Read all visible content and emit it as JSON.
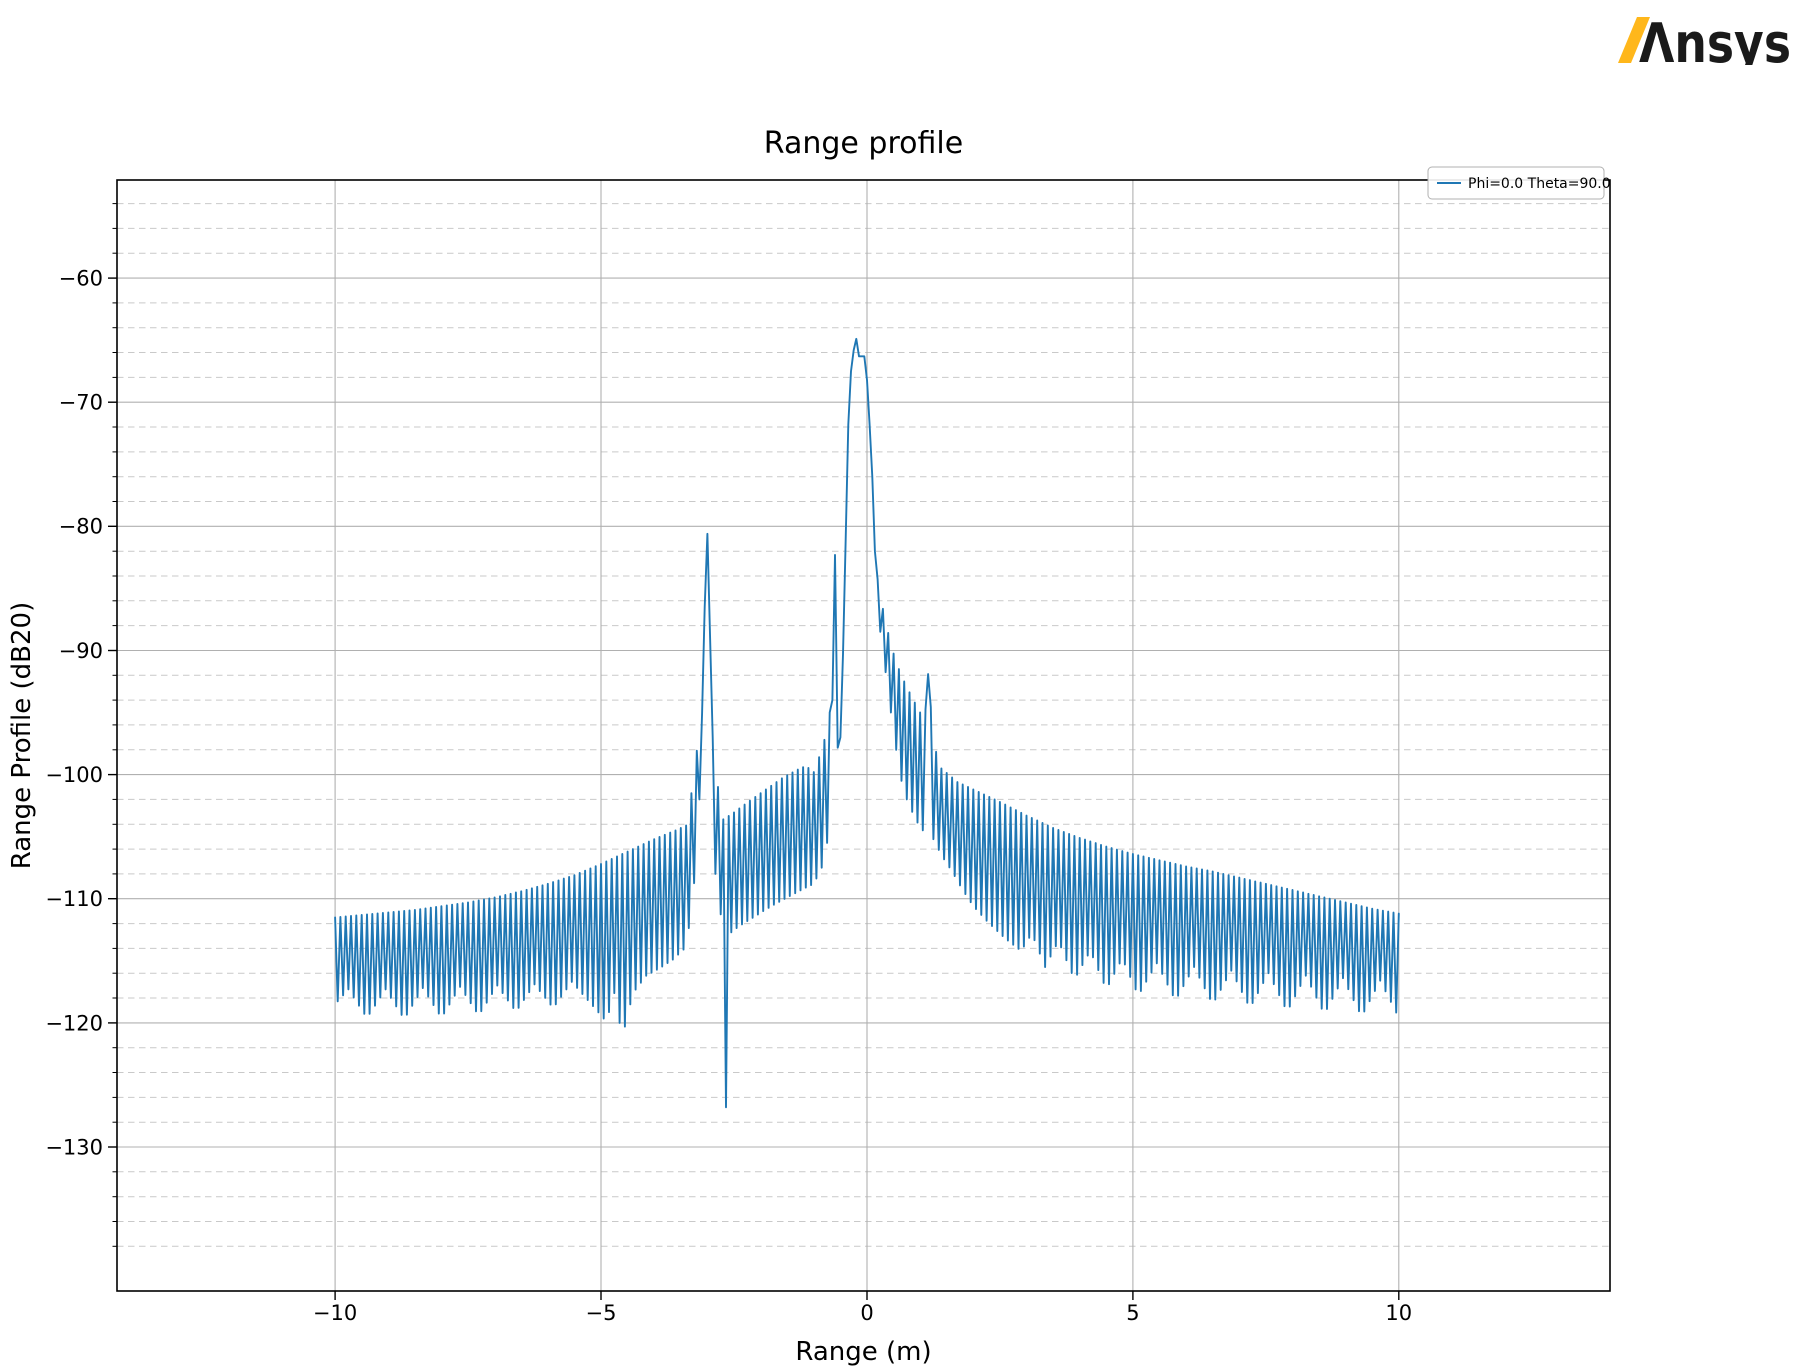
{
  "logo": {
    "alt": "Ansys",
    "mark": "Λnsys",
    "slash": "/",
    "slash_color": "#FFB71B",
    "text_color": "#1a1a1a"
  },
  "chart_data": {
    "type": "line",
    "title": "Range profile",
    "xlabel": "Range (m)",
    "ylabel": "Range Profile (dB20)",
    "xlim": [
      -14.1,
      13.97
    ],
    "ylim": [
      -141.6,
      -52.1
    ],
    "xticks": [
      {
        "v": -10,
        "label": "−10"
      },
      {
        "v": -5,
        "label": "−5"
      },
      {
        "v": 0,
        "label": "0"
      },
      {
        "v": 5,
        "label": "5"
      },
      {
        "v": 10,
        "label": "10"
      }
    ],
    "yticks": [
      {
        "v": -60,
        "label": "−60"
      },
      {
        "v": -70,
        "label": "−70"
      },
      {
        "v": -80,
        "label": "−80"
      },
      {
        "v": -90,
        "label": "−90"
      },
      {
        "v": -100,
        "label": "−100"
      },
      {
        "v": -110,
        "label": "−110"
      },
      {
        "v": -120,
        "label": "−120"
      },
      {
        "v": -130,
        "label": "−130"
      }
    ],
    "grid": {
      "major": true,
      "minor_y_step": 2,
      "minor_x": false,
      "major_color": "#b0b0b0",
      "minor_color": "#c9c9c9"
    },
    "legend": {
      "position": "upper right",
      "entries": [
        {
          "label": "Phi=0.0 Theta=90.0",
          "color": "#1f77b4"
        }
      ]
    },
    "series": [
      {
        "name": "Phi=0.0 Theta=90.0",
        "color": "#1f77b4",
        "x_range": [
          -10,
          10
        ],
        "sample_step": 0.05,
        "peak_main": {
          "x": -0.2,
          "y": -64.9
        },
        "peak_secondary": {
          "x": -3.0,
          "y": -80.6
        },
        "peak_tertiary": {
          "x": 1.15,
          "y": -91.6
        },
        "deep_null": {
          "x": -2.65,
          "y": -126.8
        },
        "noise_floor_top_db": -111,
        "envelope_upper": [
          [
            -10,
            -111.5
          ],
          [
            -9.5,
            -111.3
          ],
          [
            -9,
            -111.1
          ],
          [
            -8.5,
            -110.9
          ],
          [
            -8,
            -110.6
          ],
          [
            -7.5,
            -110.3
          ],
          [
            -7,
            -109.9
          ],
          [
            -6.5,
            -109.4
          ],
          [
            -6,
            -108.8
          ],
          [
            -5.5,
            -108.1
          ],
          [
            -5,
            -107.2
          ],
          [
            -4.5,
            -106.2
          ],
          [
            -4,
            -105.2
          ],
          [
            -3.6,
            -104.5
          ],
          [
            -3.35,
            -104.0
          ],
          [
            -3.22,
            -97.5
          ],
          [
            -3.15,
            -99.5
          ],
          [
            -3.1,
            -95.0
          ],
          [
            -3.05,
            -86.0
          ],
          [
            -3.0,
            -80.6
          ],
          [
            -2.95,
            -87.0
          ],
          [
            -2.9,
            -97.0
          ],
          [
            -2.84,
            -99.0
          ],
          [
            -2.78,
            -102.0
          ],
          [
            -2.7,
            -103.6
          ],
          [
            -2.55,
            -103.2
          ],
          [
            -2.2,
            -102.1
          ],
          [
            -1.9,
            -101.2
          ],
          [
            -1.6,
            -100.3
          ],
          [
            -1.35,
            -99.7
          ],
          [
            -1.15,
            -99.3
          ],
          [
            -1.0,
            -99.8
          ],
          [
            -0.9,
            -98.6
          ],
          [
            -0.8,
            -97.2
          ],
          [
            -0.72,
            -96.0
          ],
          [
            -0.66,
            -93.0
          ],
          [
            -0.6,
            -82.3
          ],
          [
            -0.55,
            -92.0
          ],
          [
            -0.5,
            -97.0
          ],
          [
            -0.45,
            -90.0
          ],
          [
            -0.4,
            -81.0
          ],
          [
            -0.35,
            -71.5
          ],
          [
            -0.3,
            -67.5
          ],
          [
            -0.25,
            -65.5
          ],
          [
            -0.2,
            -64.9
          ],
          [
            -0.15,
            -66.0
          ],
          [
            -0.1,
            -66.3
          ],
          [
            -0.05,
            -66.0
          ],
          [
            0.0,
            -68.2
          ],
          [
            0.05,
            -71.5
          ],
          [
            0.1,
            -76.0
          ],
          [
            0.15,
            -81.5
          ],
          [
            0.19,
            -84.0
          ],
          [
            0.27,
            -86.0
          ],
          [
            0.34,
            -87.5
          ],
          [
            0.45,
            -89.5
          ],
          [
            0.55,
            -91.0
          ],
          [
            0.7,
            -92.5
          ],
          [
            0.85,
            -93.8
          ],
          [
            1.0,
            -95.0
          ],
          [
            1.08,
            -96.0
          ],
          [
            1.15,
            -91.6
          ],
          [
            1.25,
            -97.5
          ],
          [
            1.4,
            -99.5
          ],
          [
            1.7,
            -100.6
          ],
          [
            2.0,
            -101.2
          ],
          [
            2.5,
            -102.2
          ],
          [
            3.0,
            -103.3
          ],
          [
            3.5,
            -104.3
          ],
          [
            4.0,
            -105.1
          ],
          [
            4.5,
            -105.8
          ],
          [
            5.0,
            -106.4
          ],
          [
            5.5,
            -106.9
          ],
          [
            6.0,
            -107.4
          ],
          [
            6.5,
            -107.8
          ],
          [
            7.0,
            -108.3
          ],
          [
            7.5,
            -108.8
          ],
          [
            8.0,
            -109.3
          ],
          [
            8.5,
            -109.8
          ],
          [
            9.0,
            -110.3
          ],
          [
            9.5,
            -110.8
          ],
          [
            10.0,
            -111.2
          ]
        ],
        "envelope_lower": [
          [
            -10,
            -118.5
          ],
          [
            -9.75,
            -117.3
          ],
          [
            -9.4,
            -119.6
          ],
          [
            -9.05,
            -117.3
          ],
          [
            -8.7,
            -119.7
          ],
          [
            -8.35,
            -117.2
          ],
          [
            -8.0,
            -119.6
          ],
          [
            -7.65,
            -117.1
          ],
          [
            -7.3,
            -119.4
          ],
          [
            -6.95,
            -117.0
          ],
          [
            -6.6,
            -119.1
          ],
          [
            -6.25,
            -116.9
          ],
          [
            -5.9,
            -118.8
          ],
          [
            -5.55,
            -116.7
          ],
          [
            -5.2,
            -118.4
          ],
          [
            -4.9,
            -119.9
          ],
          [
            -4.75,
            -117.6
          ],
          [
            -4.6,
            -121.2
          ],
          [
            -4.4,
            -117.6
          ],
          [
            -4.15,
            -116.2
          ],
          [
            -3.9,
            -115.6
          ],
          [
            -3.65,
            -114.9
          ],
          [
            -3.45,
            -114.1
          ],
          [
            -3.3,
            -111.5
          ],
          [
            -3.2,
            -106.0
          ],
          [
            -3.1,
            -98.0
          ],
          [
            -3.05,
            -86.5
          ],
          [
            -3.0,
            -81.0
          ],
          [
            -2.95,
            -89.0
          ],
          [
            -2.9,
            -103.0
          ],
          [
            -2.84,
            -109.0
          ],
          [
            -2.78,
            -111.0
          ],
          [
            -2.72,
            -111.5
          ],
          [
            -2.65,
            -126.8
          ],
          [
            -2.58,
            -112.8
          ],
          [
            -2.4,
            -112.2
          ],
          [
            -2.1,
            -111.4
          ],
          [
            -1.8,
            -110.6
          ],
          [
            -1.5,
            -109.9
          ],
          [
            -1.2,
            -109.2
          ],
          [
            -1.0,
            -108.8
          ],
          [
            -0.85,
            -107.5
          ],
          [
            -0.75,
            -105.5
          ],
          [
            -0.68,
            -103.0
          ],
          [
            -0.63,
            -88.0
          ],
          [
            -0.6,
            -82.6
          ],
          [
            -0.56,
            -96.0
          ],
          [
            -0.53,
            -101.5
          ],
          [
            -0.48,
            -97.3
          ],
          [
            -0.45,
            -90.3
          ],
          [
            -0.4,
            -81.3
          ],
          [
            -0.35,
            -71.8
          ],
          [
            -0.3,
            -67.8
          ],
          [
            -0.25,
            -65.8
          ],
          [
            -0.2,
            -65.2
          ],
          [
            -0.15,
            -66.3
          ],
          [
            -0.1,
            -66.6
          ],
          [
            -0.05,
            -66.3
          ],
          [
            0.0,
            -68.5
          ],
          [
            0.05,
            -71.8
          ],
          [
            0.1,
            -76.3
          ],
          [
            0.15,
            -82.0
          ],
          [
            0.2,
            -87.0
          ],
          [
            0.3,
            -90.0
          ],
          [
            0.4,
            -93.5
          ],
          [
            0.5,
            -96.5
          ],
          [
            0.6,
            -99.5
          ],
          [
            0.7,
            -101.5
          ],
          [
            0.85,
            -103.0
          ],
          [
            1.0,
            -104.3
          ],
          [
            1.08,
            -104.6
          ],
          [
            1.15,
            -91.9
          ],
          [
            1.25,
            -105.2
          ],
          [
            1.4,
            -106.5
          ],
          [
            1.6,
            -107.8
          ],
          [
            1.8,
            -109.3
          ],
          [
            2.0,
            -110.6
          ],
          [
            2.3,
            -112.0
          ],
          [
            2.6,
            -113.2
          ],
          [
            2.9,
            -114.2
          ],
          [
            3.1,
            -112.8
          ],
          [
            3.35,
            -115.5
          ],
          [
            3.6,
            -113.4
          ],
          [
            3.9,
            -116.5
          ],
          [
            4.2,
            -114.2
          ],
          [
            4.5,
            -117.3
          ],
          [
            4.8,
            -114.8
          ],
          [
            5.1,
            -117.8
          ],
          [
            5.45,
            -115.2
          ],
          [
            5.8,
            -118.2
          ],
          [
            6.15,
            -115.5
          ],
          [
            6.5,
            -118.5
          ],
          [
            6.85,
            -115.8
          ],
          [
            7.2,
            -118.8
          ],
          [
            7.55,
            -116.0
          ],
          [
            7.9,
            -119.1
          ],
          [
            8.25,
            -116.2
          ],
          [
            8.6,
            -119.3
          ],
          [
            8.95,
            -116.4
          ],
          [
            9.3,
            -119.5
          ],
          [
            9.65,
            -116.6
          ],
          [
            10.0,
            -119.6
          ]
        ]
      }
    ]
  }
}
